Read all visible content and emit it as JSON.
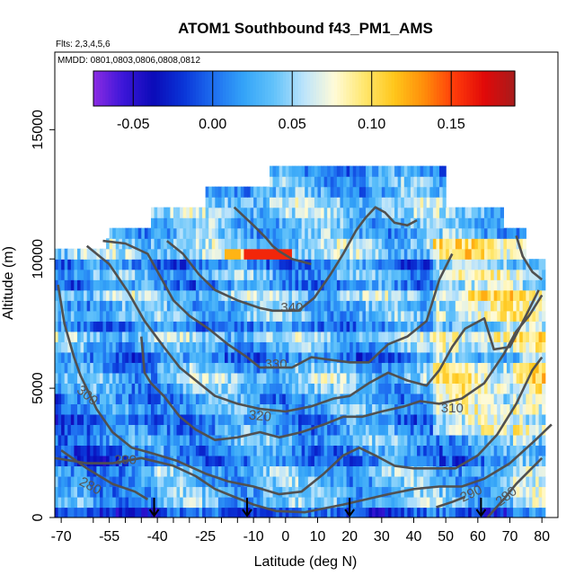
{
  "chart_data": {
    "type": "heatmap",
    "title": "ATOM1 Southbound f43_PM1_AMS",
    "flights_note": "Flts: 2,3,4,5,6",
    "dates_note": "MMDD: 0801,0803,0806,0808,0812",
    "xlabel": "Latitude (deg N)",
    "ylabel": "Altitude (m)",
    "xlim": [
      -72,
      85
    ],
    "ylim": [
      0,
      18000
    ],
    "x_ticks": [
      -70,
      -55,
      -40,
      -25,
      -10,
      0,
      10,
      20,
      30,
      40,
      50,
      60,
      70,
      80
    ],
    "x_tick_labels": [
      "-70",
      "-55",
      "-40",
      "-25",
      "-10",
      "0",
      "10",
      "20",
      "30",
      "40",
      "50",
      "60",
      "70",
      "80"
    ],
    "x_minor_ticks": [
      -60,
      -50,
      -45,
      -35,
      -30,
      -20,
      -15,
      -5
    ],
    "y_ticks": [
      0,
      5000,
      10000,
      15000
    ],
    "y_tick_labels": [
      "0",
      "5000",
      "10000",
      "15000"
    ],
    "colorbar": {
      "range": [
        -0.075,
        0.19
      ],
      "ticks": [
        -0.05,
        0.0,
        0.05,
        0.1,
        0.15
      ],
      "tick_labels": [
        "-0.05",
        "0.00",
        "0.05",
        "0.10",
        "0.15"
      ],
      "colors": [
        "#8b2be2",
        "#3b16d8",
        "#0b0bb8",
        "#0a35d8",
        "#1e6ff0",
        "#34a4f8",
        "#62c2fa",
        "#bde4fb",
        "#fffbd8",
        "#ffe76e",
        "#ffc61a",
        "#ff8c0a",
        "#ff3a0a",
        "#e00909",
        "#a81c1c"
      ]
    },
    "profile_markers_lat": [
      -41,
      -12,
      20,
      61
    ],
    "theta_contours": [
      {
        "label": "280",
        "label_lat": -61,
        "label_alt": 1200,
        "label_rot": 28,
        "points": [
          [
            -70,
            2600
          ],
          [
            -62,
            1900
          ],
          [
            -54,
            1300
          ],
          [
            -47,
            1000
          ],
          [
            -43,
            700
          ]
        ]
      },
      {
        "label": "280",
        "label_lat": 69,
        "label_alt": 800,
        "label_rot": -38,
        "points": [
          [
            63,
            0
          ],
          [
            68,
            700
          ],
          [
            72,
            1300
          ],
          [
            76,
            1800
          ],
          [
            80,
            2300
          ]
        ]
      },
      {
        "label": "290",
        "label_lat": -50,
        "label_alt": 2200,
        "label_rot": 0,
        "points": [
          [
            -72,
            2300
          ],
          [
            -62,
            2100
          ],
          [
            -54,
            2100
          ],
          [
            -45,
            2300
          ],
          [
            -35,
            2000
          ],
          [
            -28,
            1600
          ],
          [
            -22,
            1100
          ],
          [
            -16,
            800
          ],
          [
            -10,
            500
          ],
          [
            -3,
            250
          ],
          [
            6,
            200
          ],
          [
            12,
            350
          ],
          [
            18,
            500
          ],
          [
            25,
            700
          ],
          [
            32,
            900
          ],
          [
            40,
            1100
          ],
          [
            48,
            1200
          ],
          [
            55,
            1200
          ],
          [
            62,
            1500
          ],
          [
            70,
            2100
          ],
          [
            78,
            3000
          ],
          [
            83,
            3600
          ]
        ]
      },
      {
        "label": "290",
        "label_lat": 58,
        "label_alt": 900,
        "label_rot": -25,
        "points": [
          [
            47,
            400
          ],
          [
            52,
            600
          ],
          [
            56,
            800
          ]
        ]
      },
      {
        "label": "300",
        "label_lat": -62,
        "label_alt": 4700,
        "label_rot": 40,
        "points": [
          [
            -71,
            9000
          ],
          [
            -69,
            7500
          ],
          [
            -66,
            6200
          ],
          [
            -64,
            5500
          ],
          [
            -59,
            4200
          ],
          [
            -54,
            3300
          ],
          [
            -48,
            2700
          ],
          [
            -42,
            2500
          ],
          [
            -34,
            2200
          ],
          [
            -25,
            1700
          ],
          [
            -18,
            1400
          ],
          [
            -10,
            1200
          ],
          [
            -2,
            900
          ],
          [
            5,
            1000
          ],
          [
            12,
            1700
          ],
          [
            18,
            2400
          ],
          [
            23,
            2700
          ],
          [
            28,
            2400
          ],
          [
            34,
            2000
          ],
          [
            40,
            1900
          ],
          [
            46,
            1900
          ],
          [
            53,
            1900
          ],
          [
            60,
            2400
          ],
          [
            66,
            3200
          ],
          [
            72,
            4400
          ],
          [
            77,
            5700
          ],
          [
            80,
            6200
          ]
        ]
      },
      {
        "label": "310",
        "label_lat": 52,
        "label_alt": 4200,
        "label_rot": 0,
        "points": [
          [
            -45,
            7000
          ],
          [
            -44,
            5600
          ],
          [
            -42,
            5200
          ],
          [
            -38,
            4700
          ],
          [
            -33,
            3900
          ],
          [
            -28,
            3400
          ],
          [
            -22,
            3000
          ],
          [
            -15,
            3100
          ],
          [
            -8,
            3300
          ],
          [
            -2,
            3100
          ],
          [
            5,
            3300
          ],
          [
            12,
            3600
          ],
          [
            18,
            3900
          ],
          [
            24,
            3900
          ],
          [
            30,
            4100
          ],
          [
            37,
            4300
          ],
          [
            42,
            4500
          ],
          [
            48,
            4400
          ],
          [
            55,
            4600
          ],
          [
            62,
            5200
          ],
          [
            68,
            6300
          ],
          [
            72,
            7200
          ],
          [
            76,
            7800
          ],
          [
            80,
            8600
          ]
        ]
      },
      {
        "label": "320",
        "label_lat": -8,
        "label_alt": 3900,
        "label_rot": 5,
        "points": [
          [
            -62,
            10500
          ],
          [
            -55,
            9800
          ],
          [
            -49,
            8700
          ],
          [
            -44,
            7600
          ],
          [
            -38,
            6600
          ],
          [
            -33,
            5800
          ],
          [
            -28,
            5300
          ],
          [
            -22,
            4700
          ],
          [
            -15,
            4400
          ],
          [
            -8,
            4200
          ],
          [
            0,
            4100
          ],
          [
            8,
            4300
          ],
          [
            15,
            4600
          ],
          [
            20,
            4700
          ],
          [
            26,
            5200
          ],
          [
            32,
            5600
          ],
          [
            38,
            5300
          ],
          [
            44,
            5100
          ],
          [
            48,
            5700
          ],
          [
            52,
            6600
          ],
          [
            56,
            7300
          ],
          [
            62,
            7700
          ],
          [
            65,
            6500
          ],
          [
            70,
            6600
          ],
          [
            75,
            7800
          ],
          [
            79,
            8800
          ]
        ]
      },
      {
        "label": "330",
        "label_lat": -3,
        "label_alt": 5900,
        "label_rot": 0,
        "points": [
          [
            -57,
            10700
          ],
          [
            -50,
            10600
          ],
          [
            -43,
            10200
          ],
          [
            -39,
            9300
          ],
          [
            -35,
            8400
          ],
          [
            -30,
            7800
          ],
          [
            -24,
            7300
          ],
          [
            -18,
            6700
          ],
          [
            -12,
            6200
          ],
          [
            -8,
            5800
          ],
          [
            2,
            5800
          ],
          [
            8,
            6200
          ],
          [
            14,
            6100
          ],
          [
            20,
            6000
          ],
          [
            26,
            6000
          ],
          [
            32,
            6700
          ],
          [
            38,
            7000
          ],
          [
            44,
            7600
          ],
          [
            48,
            9200
          ],
          [
            52,
            10200
          ]
        ]
      },
      {
        "label": "340",
        "label_lat": 2,
        "label_alt": 8100,
        "label_rot": 0,
        "points": [
          [
            -37,
            10700
          ],
          [
            -32,
            10200
          ],
          [
            -27,
            9400
          ],
          [
            -22,
            8800
          ],
          [
            -15,
            8400
          ],
          [
            -8,
            8100
          ],
          [
            -4,
            8000
          ],
          [
            4,
            8000
          ],
          [
            9,
            8500
          ],
          [
            14,
            9400
          ],
          [
            18,
            10200
          ],
          [
            22,
            11100
          ],
          [
            25,
            11600
          ],
          [
            28,
            12000
          ],
          [
            31,
            11800
          ],
          [
            34,
            11400
          ],
          [
            38,
            11300
          ],
          [
            41,
            11500
          ]
        ]
      },
      {
        "label": "",
        "label_lat": 0,
        "label_alt": 0,
        "label_rot": 0,
        "points": [
          [
            -16,
            12000
          ],
          [
            -10,
            11300
          ],
          [
            -6,
            10800
          ],
          [
            -4,
            10500
          ],
          [
            -2,
            10300
          ],
          [
            2,
            10000
          ],
          [
            8,
            9800
          ]
        ]
      },
      {
        "label": "",
        "label_lat": 0,
        "label_alt": 0,
        "label_rot": 0,
        "points": [
          [
            72,
            10900
          ],
          [
            74,
            10100
          ],
          [
            77,
            9500
          ],
          [
            80,
            9200
          ]
        ]
      }
    ]
  }
}
